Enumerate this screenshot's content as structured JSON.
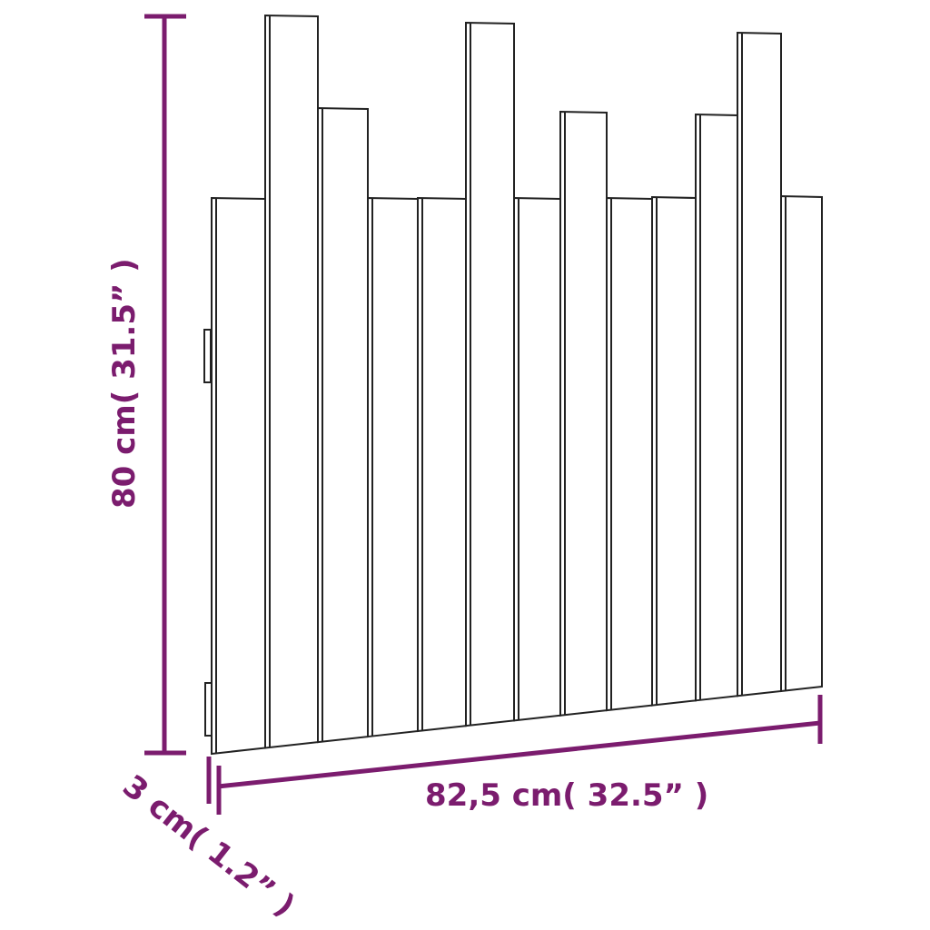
{
  "dimensions": {
    "height_label": "80 cm( 31.5” )",
    "width_label": "82,5 cm( 32.5” )",
    "depth_label": "3 cm( 1.2” )"
  },
  "colors": {
    "dimension": "#7b1c6e",
    "outline": "#222222"
  }
}
